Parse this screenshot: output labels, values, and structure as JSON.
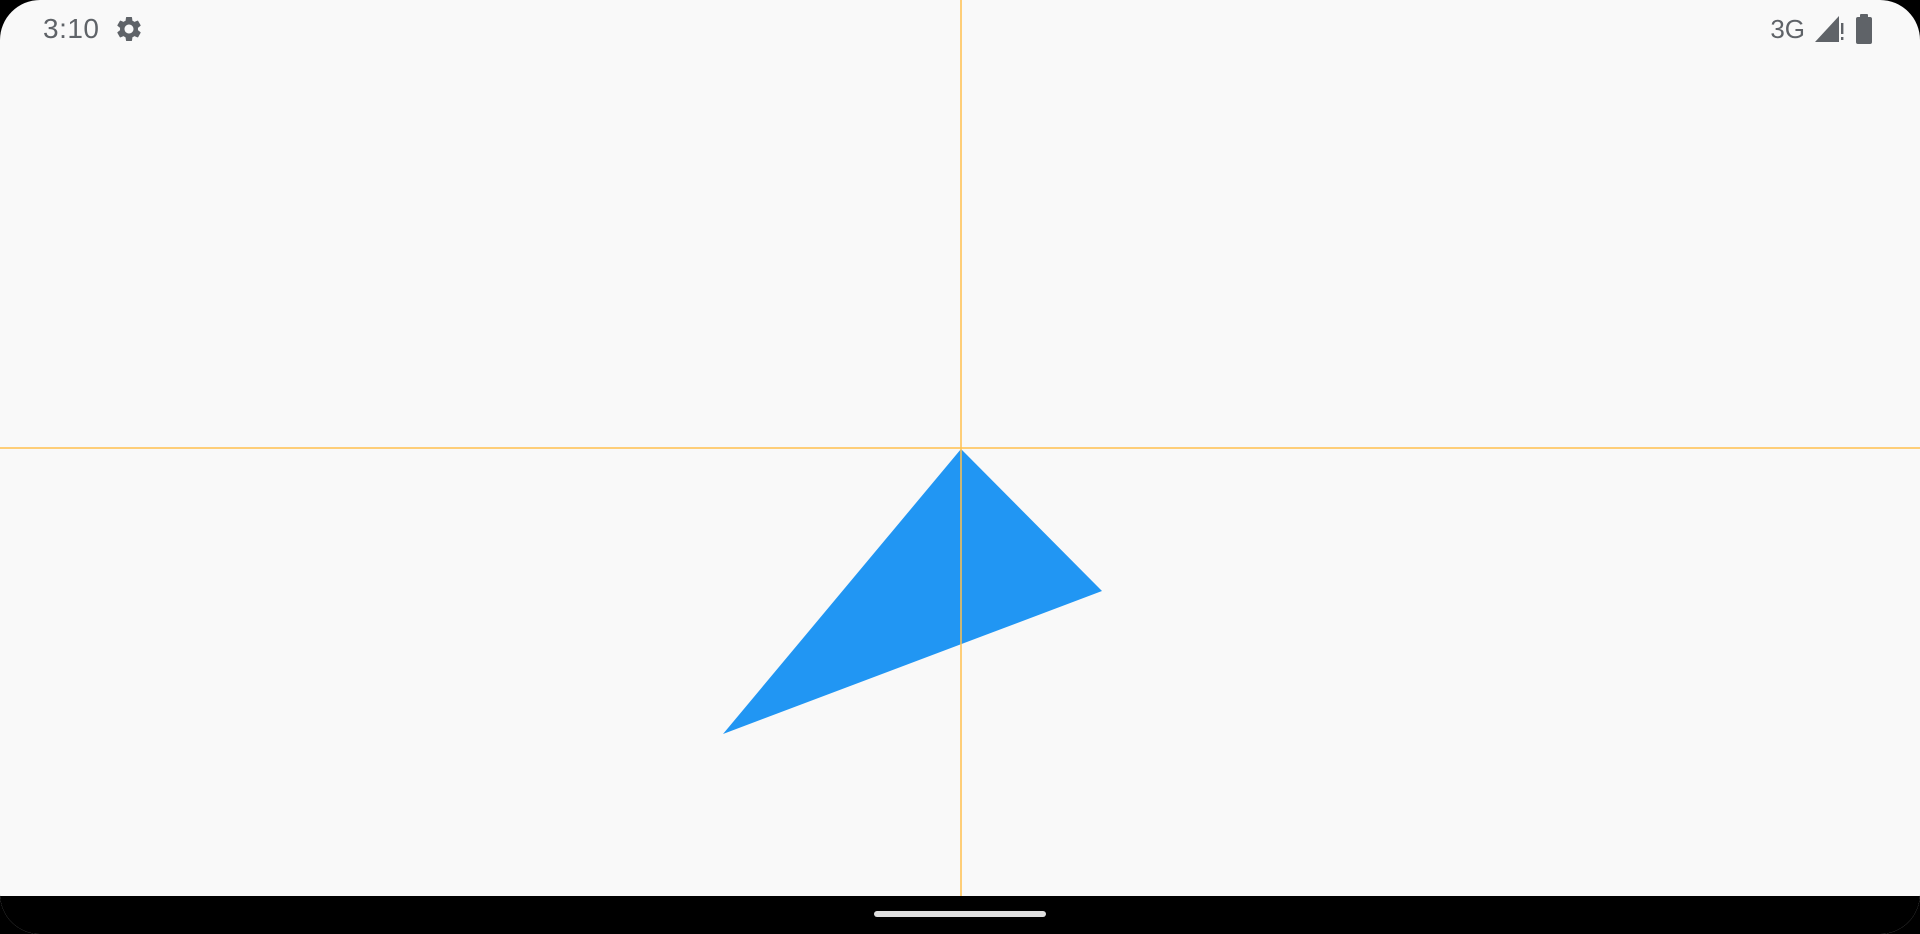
{
  "status_bar": {
    "time": "3:10",
    "network": "3G",
    "icons": [
      "settings-gear-icon",
      "cell-signal-alert-icon",
      "battery-icon"
    ]
  },
  "canvas": {
    "background": "#f9f9f9",
    "crosshair_color": "#ffc04d",
    "triangle_color": "#2196f3"
  },
  "nav_bar": {
    "background": "#000000",
    "handle_color": "#e0e0e0"
  }
}
